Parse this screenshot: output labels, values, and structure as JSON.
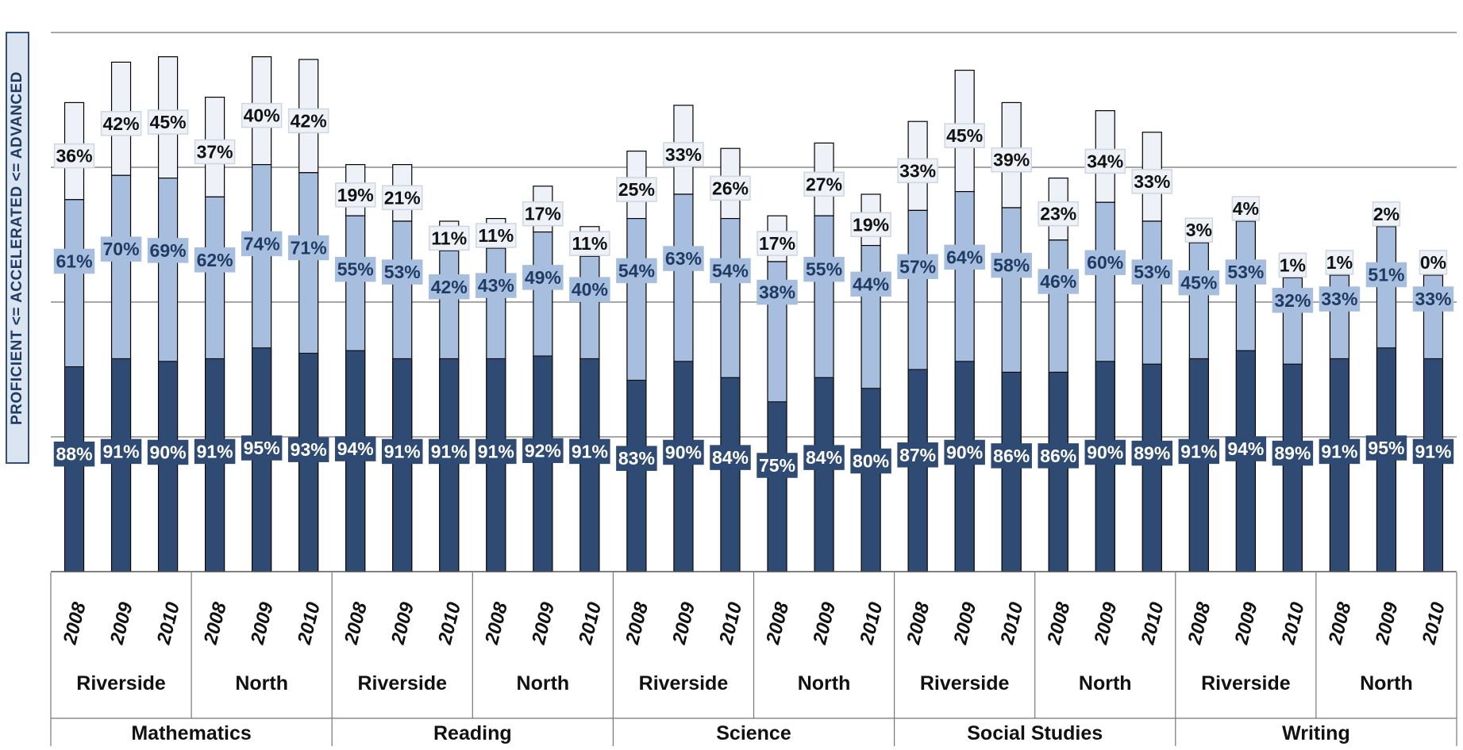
{
  "chart_data": {
    "type": "bar",
    "subtype": "stacked-overlay",
    "ylabel": "PROFICIENT <= ACCELERATED <= ADVANCED",
    "ylim": [
      0,
      100
    ],
    "grid": true,
    "subjects": [
      "Mathematics",
      "Reading",
      "Science",
      "Social Studies",
      "Writing"
    ],
    "schools": [
      "Riverside",
      "North"
    ],
    "years": [
      "2008",
      "2009",
      "2010"
    ],
    "series": [
      {
        "name": "Proficient",
        "color": "#2f4b73",
        "values": [
          88,
          91,
          90,
          91,
          95,
          93,
          94,
          91,
          91,
          91,
          92,
          91,
          83,
          90,
          84,
          75,
          84,
          80,
          87,
          90,
          86,
          86,
          90,
          89,
          91,
          94,
          89,
          91,
          95,
          91
        ],
        "labels": [
          "88%",
          "91%",
          "90%",
          "91%",
          "95%",
          "93%",
          "94%",
          "91%",
          "91%",
          "91%",
          "92%",
          "91%",
          "83%",
          "90%",
          "84%",
          "75%",
          "84%",
          "80%",
          "87%",
          "90%",
          "86%",
          "86%",
          "90%",
          "89%",
          "91%",
          "94%",
          "89%",
          "91%",
          "95%",
          "91%"
        ]
      },
      {
        "name": "Accelerated",
        "color": "#a7bedf",
        "values": [
          61,
          70,
          69,
          62,
          74,
          71,
          55,
          53,
          42,
          43,
          49,
          40,
          54,
          63,
          54,
          38,
          55,
          44,
          57,
          64,
          58,
          46,
          60,
          53,
          45,
          53,
          32,
          33,
          51,
          33
        ],
        "labels": [
          "61%",
          "70%",
          "69%",
          "62%",
          "74%",
          "71%",
          "55%",
          "53%",
          "42%",
          "43%",
          "49%",
          "40%",
          "54%",
          "63%",
          "54%",
          "38%",
          "55%",
          "44%",
          "57%",
          "64%",
          "58%",
          "46%",
          "60%",
          "53%",
          "45%",
          "53%",
          "32%",
          "33%",
          "51%",
          "33%"
        ]
      },
      {
        "name": "Advanced",
        "color": "#eef2f8",
        "values": [
          36,
          42,
          45,
          37,
          40,
          42,
          19,
          21,
          11,
          11,
          17,
          11,
          25,
          33,
          26,
          17,
          27,
          19,
          33,
          45,
          39,
          23,
          34,
          33,
          3,
          4,
          1,
          1,
          2,
          0
        ],
        "labels": [
          "36%",
          "42%",
          "45%",
          "37%",
          "40%",
          "42%",
          "19%",
          "21%",
          "11%",
          "11%",
          "17%",
          "11%",
          "25%",
          "33%",
          "26%",
          "17%",
          "27%",
          "19%",
          "33%",
          "45%",
          "39%",
          "23%",
          "34%",
          "33%",
          "3%",
          "4%",
          "1%",
          "1%",
          "2%",
          "0%"
        ]
      }
    ]
  }
}
